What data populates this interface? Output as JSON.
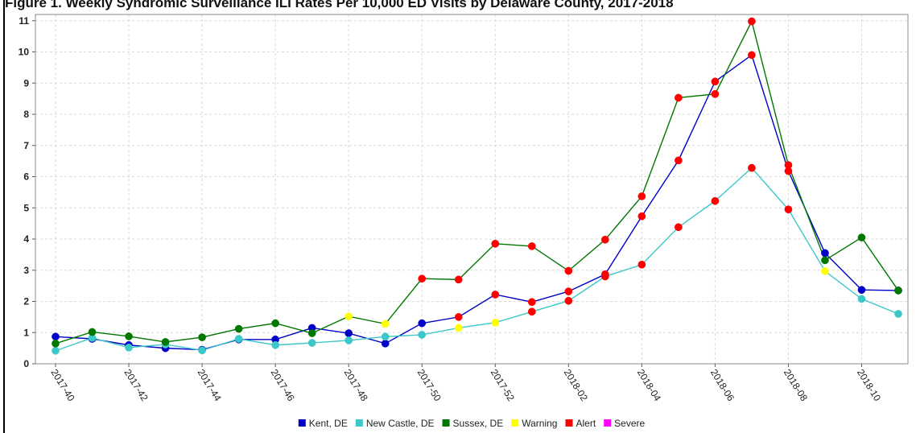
{
  "title": "Figure 1. Weekly Syndromic Surveillance ILI Rates Per 10,000 ED Visits by Delaware County, 2017-2018",
  "chart_data": {
    "type": "line",
    "x": [
      "2017-40",
      "2017-41",
      "2017-42",
      "2017-43",
      "2017-44",
      "2017-45",
      "2017-46",
      "2017-47",
      "2017-48",
      "2017-49",
      "2017-50",
      "2017-51",
      "2017-52",
      "2018-01",
      "2018-02",
      "2018-03",
      "2018-04",
      "2018-05",
      "2018-06",
      "2018-07",
      "2018-08",
      "2018-09",
      "2018-10",
      "2018-11"
    ],
    "xticks": [
      "2017-40",
      "2017-42",
      "2017-44",
      "2017-46",
      "2017-48",
      "2017-50",
      "2017-52",
      "2018-02",
      "2018-04",
      "2018-06",
      "2018-08",
      "2018-10"
    ],
    "yticks": [
      "0",
      "1",
      "2",
      "3",
      "4",
      "5",
      "6",
      "7",
      "8",
      "9",
      "10",
      "11"
    ],
    "ylim": [
      0,
      11.2
    ],
    "grid": true,
    "legend_position": "bottom-center",
    "series": [
      {
        "name": "Kent, DE",
        "color": "#0000c8",
        "values": [
          0.87,
          0.8,
          0.6,
          0.5,
          0.45,
          0.78,
          0.78,
          1.15,
          0.98,
          0.65,
          1.3,
          1.5,
          2.22,
          1.98,
          2.32,
          2.87,
          4.73,
          6.52,
          9.05,
          9.9,
          6.18,
          3.55,
          2.37,
          2.35
        ],
        "levels": [
          "",
          "",
          "",
          "",
          "",
          "",
          "",
          "",
          "",
          "",
          "",
          "alert",
          "alert",
          "alert",
          "alert",
          "alert",
          "alert",
          "alert",
          "alert",
          "alert",
          "alert",
          "",
          "",
          ""
        ]
      },
      {
        "name": "New Castle, DE",
        "color": "#3cc8c8",
        "values": [
          0.42,
          0.83,
          0.52,
          0.62,
          0.43,
          0.8,
          0.6,
          0.67,
          0.75,
          0.87,
          0.93,
          1.15,
          1.32,
          1.67,
          2.02,
          2.8,
          3.18,
          4.38,
          5.22,
          6.28,
          4.95,
          2.97,
          2.08,
          1.6
        ],
        "levels": [
          "",
          "",
          "",
          "",
          "",
          "",
          "",
          "",
          "",
          "",
          "",
          "warning",
          "warning",
          "alert",
          "alert",
          "alert",
          "alert",
          "alert",
          "alert",
          "alert",
          "alert",
          "warning",
          "",
          ""
        ]
      },
      {
        "name": "Sussex, DE",
        "color": "#007800",
        "values": [
          0.65,
          1.02,
          0.88,
          0.7,
          0.85,
          1.12,
          1.3,
          0.98,
          1.52,
          1.28,
          2.73,
          2.7,
          3.85,
          3.77,
          2.98,
          3.98,
          5.37,
          8.53,
          8.65,
          10.98,
          6.37,
          3.32,
          4.05,
          2.35
        ],
        "levels": [
          "",
          "",
          "",
          "",
          "",
          "",
          "",
          "",
          "warning",
          "warning",
          "alert",
          "alert",
          "alert",
          "alert",
          "alert",
          "alert",
          "alert",
          "alert",
          "alert",
          "alert",
          "alert",
          "",
          "",
          ""
        ]
      }
    ],
    "threshold_levels": [
      {
        "key": "warning",
        "name": "Warning",
        "color": "#ffff00"
      },
      {
        "key": "alert",
        "name": "Alert",
        "color": "#ff0000"
      },
      {
        "key": "severe",
        "name": "Severe",
        "color": "#ff00ff"
      }
    ]
  }
}
